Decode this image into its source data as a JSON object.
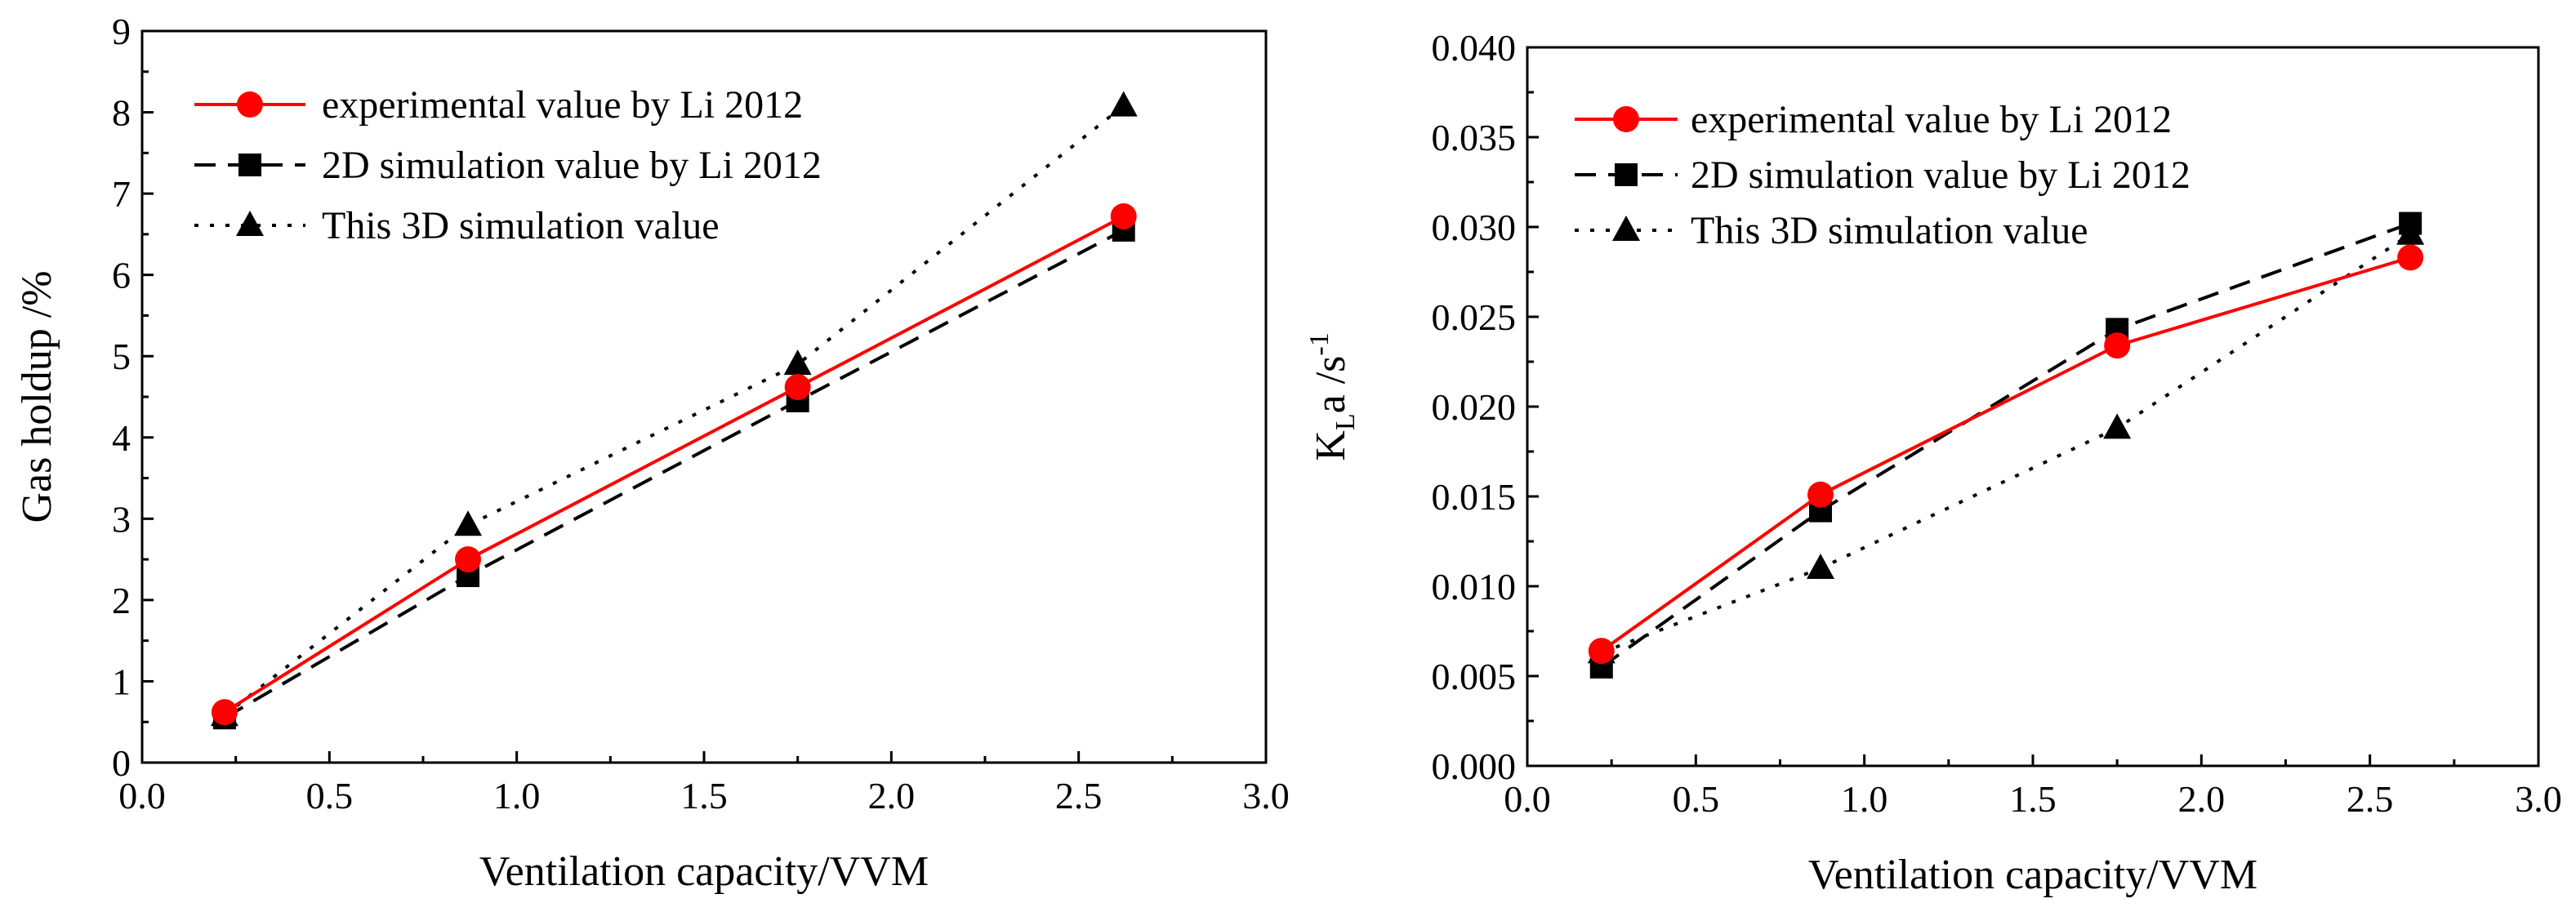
{
  "chart_data": [
    {
      "type": "line",
      "title": "",
      "xlabel": "Ventilation capacity/VVM",
      "ylabel": "Gas holdup /%",
      "xlim": [
        0.0,
        3.0
      ],
      "ylim": [
        0,
        9
      ],
      "xticks": [
        0.0,
        0.5,
        1.0,
        1.5,
        2.0,
        2.5,
        3.0
      ],
      "xtick_labels": [
        "0.0",
        "0.5",
        "1.0",
        "1.5",
        "2.0",
        "2.5",
        "3.0"
      ],
      "yticks": [
        0,
        1,
        2,
        3,
        4,
        5,
        6,
        7,
        8,
        9
      ],
      "ytick_labels": [
        "0",
        "1",
        "2",
        "3",
        "4",
        "5",
        "6",
        "7",
        "8",
        "9"
      ],
      "grid": false,
      "legend_position": "top-left",
      "x": [
        0.22,
        0.87,
        1.75,
        2.62
      ],
      "series": [
        {
          "name": "experimental value by Li 2012",
          "values": [
            0.62,
            2.5,
            4.62,
            6.72
          ],
          "color": "#ff0000",
          "marker": "circle",
          "line": "solid"
        },
        {
          "name": "2D simulation value by Li 2012",
          "values": [
            0.55,
            2.3,
            4.45,
            6.55
          ],
          "color": "#000000",
          "marker": "square",
          "line": "dashed"
        },
        {
          "name": "This 3D simulation value",
          "values": [
            0.58,
            2.92,
            4.9,
            8.08
          ],
          "color": "#000000",
          "marker": "triangle",
          "line": "dotted"
        }
      ]
    },
    {
      "type": "line",
      "title": "",
      "xlabel": "Ventilation capacity/VVM",
      "ylabel": "K",
      "ylabel_sub": "L",
      "ylabel_tail": "a /s",
      "ylabel_sup": "-1",
      "xlim": [
        0.0,
        3.0
      ],
      "ylim": [
        0.0,
        0.04
      ],
      "xticks": [
        0.0,
        0.5,
        1.0,
        1.5,
        2.0,
        2.5,
        3.0
      ],
      "xtick_labels": [
        "0.0",
        "0.5",
        "1.0",
        "1.5",
        "2.0",
        "2.5",
        "3.0"
      ],
      "yticks": [
        0.0,
        0.005,
        0.01,
        0.015,
        0.02,
        0.025,
        0.03,
        0.035,
        0.04
      ],
      "ytick_labels": [
        "0.000",
        "0.005",
        "0.010",
        "0.015",
        "0.020",
        "0.025",
        "0.030",
        "0.035",
        "0.040"
      ],
      "grid": false,
      "legend_position": "top-left",
      "x": [
        0.22,
        0.87,
        1.75,
        2.62
      ],
      "series": [
        {
          "name": "experimental value by Li 2012",
          "values": [
            0.0064,
            0.0151,
            0.0234,
            0.0283
          ],
          "color": "#ff0000",
          "marker": "circle",
          "line": "solid"
        },
        {
          "name": "2D simulation value by Li 2012",
          "values": [
            0.0055,
            0.0142,
            0.0243,
            0.0302
          ],
          "color": "#000000",
          "marker": "square",
          "line": "dashed"
        },
        {
          "name": "This 3D simulation value",
          "values": [
            0.0063,
            0.011,
            0.0188,
            0.0296
          ],
          "color": "#000000",
          "marker": "triangle",
          "line": "dotted"
        }
      ]
    }
  ]
}
